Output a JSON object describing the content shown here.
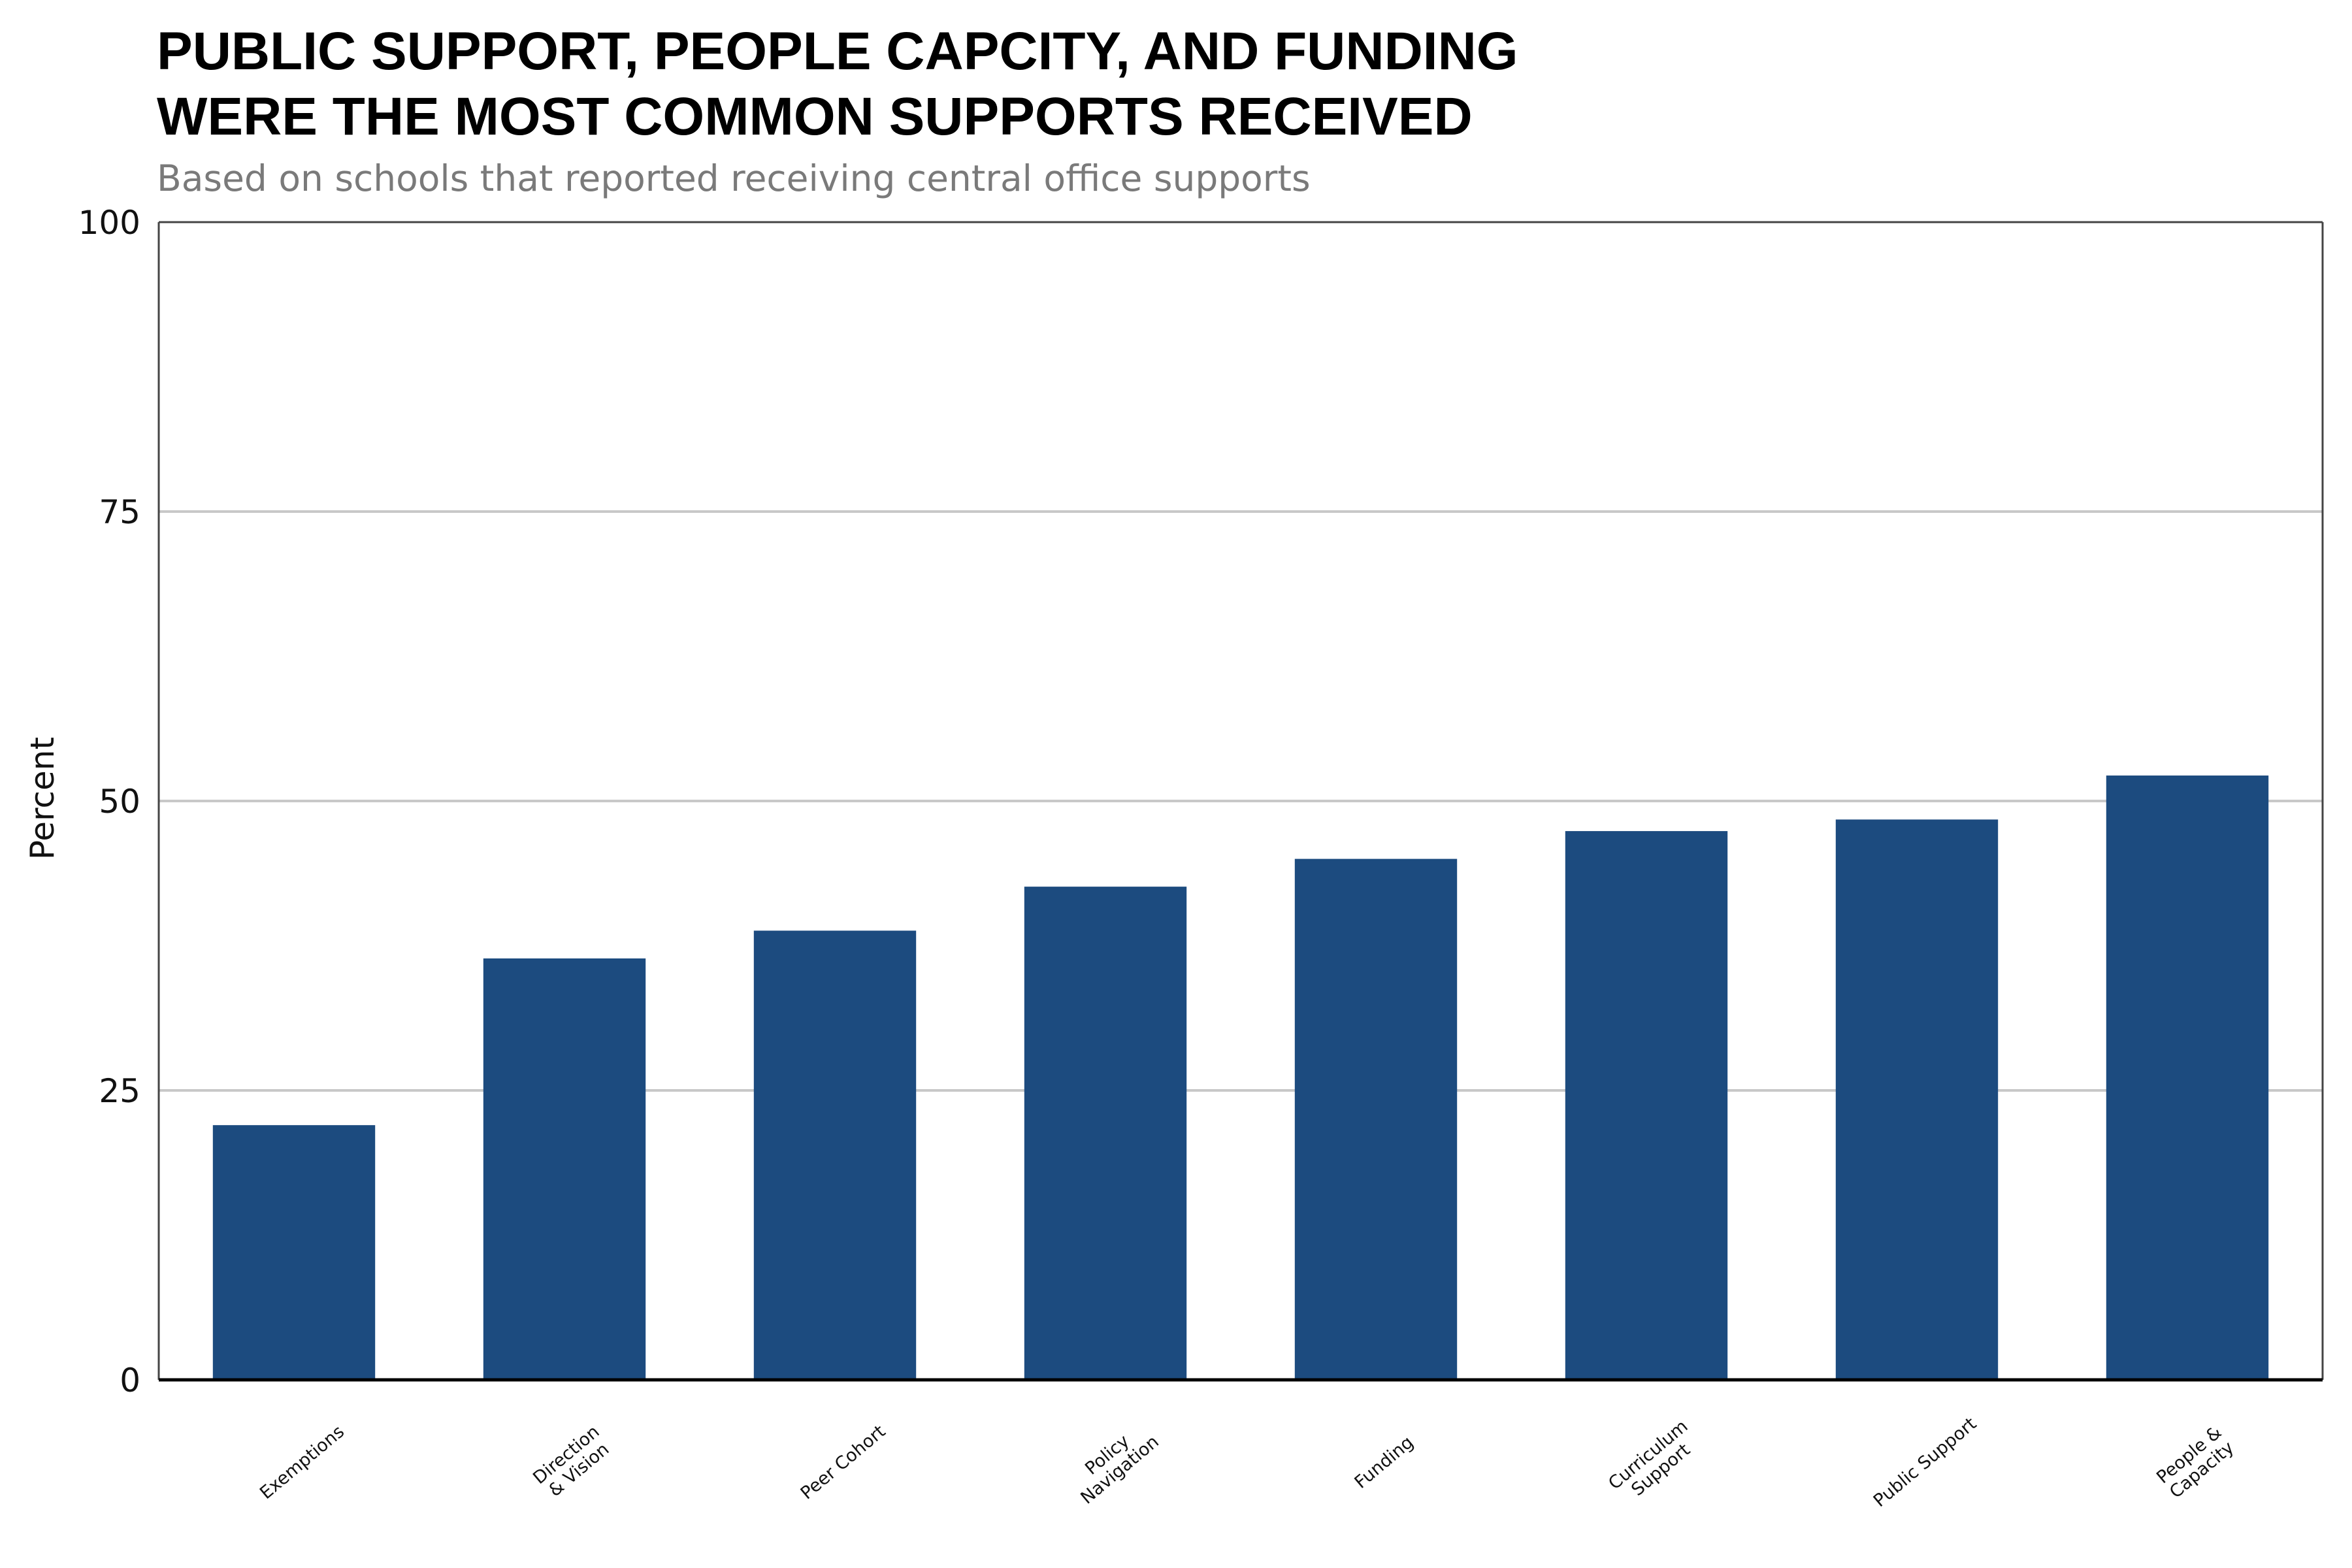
{
  "chart_data": {
    "type": "bar",
    "title_lines": [
      "PUBLIC SUPPORT, PEOPLE CAPCITY, AND FUNDING",
      "WERE THE MOST COMMON SUPPORTS RECEIVED"
    ],
    "subtitle": "Based on schools that reported receiving central office supports",
    "ylabel": "Percent",
    "xlabel": "",
    "ylim": [
      0,
      100
    ],
    "yticks": [
      0,
      25,
      50,
      75,
      100
    ],
    "grid": true,
    "categories": [
      [
        "Exemptions"
      ],
      [
        "Direction",
        "& Vision"
      ],
      [
        "Peer Cohort"
      ],
      [
        "Policy",
        "Navigation"
      ],
      [
        "Funding"
      ],
      [
        "Curriculum",
        "Support"
      ],
      [
        "Public Support"
      ],
      [
        "People &",
        "Capacity"
      ]
    ],
    "values": [
      22,
      36.4,
      38.8,
      42.6,
      45,
      47.4,
      48.4,
      52.2
    ],
    "colors": {
      "bar": "#1c4b7f",
      "grid": "#c8c8c8",
      "frame": "#444444",
      "axis": "#000000"
    }
  }
}
